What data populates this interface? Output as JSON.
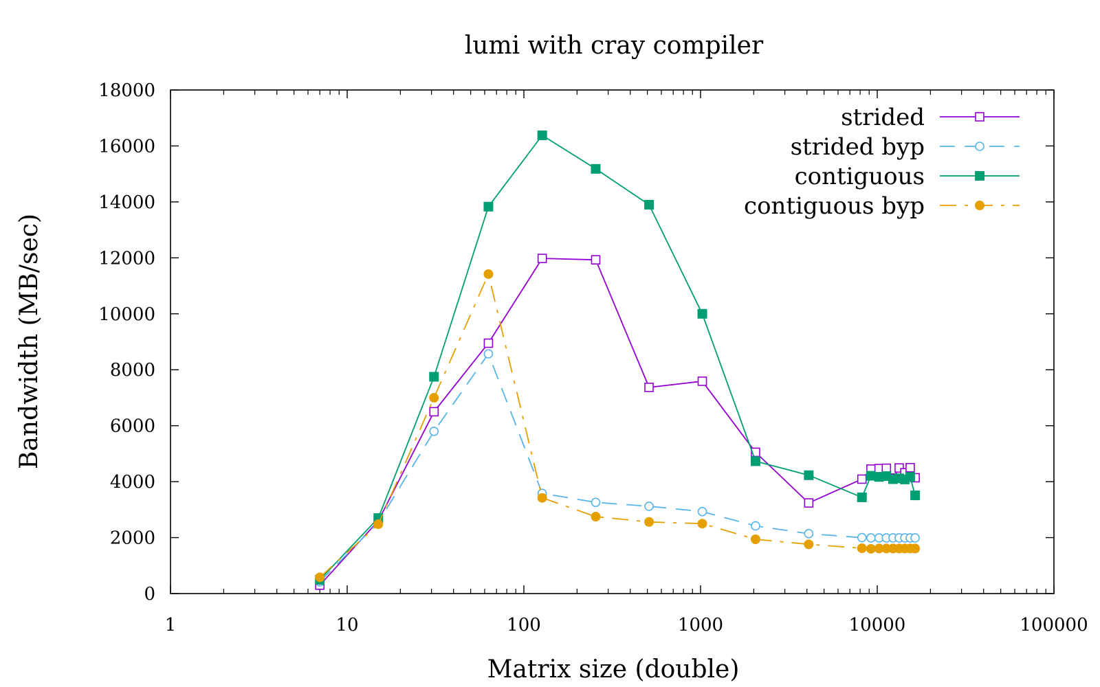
{
  "chart_data": {
    "type": "line",
    "title": "lumi with cray compiler",
    "xlabel": "Matrix size (double)",
    "ylabel": "Bandwidth (MB/sec)",
    "xscale": "log",
    "xlim": [
      1,
      100000
    ],
    "ylim": [
      0,
      18000
    ],
    "xticks": [
      1,
      10,
      100,
      1000,
      10000,
      100000
    ],
    "xtick_labels": [
      "1",
      "10",
      "100",
      "1000",
      "10000",
      "100000"
    ],
    "yticks": [
      0,
      2000,
      4000,
      6000,
      8000,
      10000,
      12000,
      14000,
      16000,
      18000
    ],
    "ytick_labels": [
      "0",
      "2000",
      "4000",
      "6000",
      "8000",
      "10000",
      "12000",
      "14000",
      "16000",
      "18000"
    ],
    "grid": false,
    "legend_position": "top-right",
    "series": [
      {
        "name": "strided",
        "color": "#9400d3",
        "line_style": "solid",
        "marker": "open-square",
        "x": [
          7,
          15,
          31,
          63,
          127,
          255,
          511,
          1023,
          2047,
          4095,
          8191,
          9215,
          10239,
          11263,
          12287,
          13311,
          14335,
          15359,
          16383
        ],
        "y": [
          300,
          2600,
          6500,
          8950,
          11980,
          11930,
          7370,
          7590,
          5050,
          3240,
          4090,
          4450,
          4470,
          4480,
          4130,
          4490,
          4320,
          4500,
          4140
        ]
      },
      {
        "name": "strided byp",
        "color": "#56b4e9",
        "line_style": "dashed",
        "marker": "open-circle",
        "x": [
          7,
          15,
          31,
          63,
          127,
          255,
          511,
          1023,
          2047,
          4095,
          8191,
          9215,
          10239,
          11263,
          12287,
          13311,
          14335,
          15359,
          16383
        ],
        "y": [
          420,
          2550,
          5800,
          8570,
          3580,
          3260,
          3120,
          2930,
          2420,
          2140,
          2000,
          1990,
          1990,
          1990,
          1990,
          1990,
          1990,
          1990,
          1990
        ]
      },
      {
        "name": "contiguous",
        "color": "#009e73",
        "line_style": "solid",
        "marker": "filled-square",
        "x": [
          7,
          15,
          31,
          63,
          127,
          255,
          511,
          1023,
          2047,
          4095,
          8191,
          9215,
          10239,
          11263,
          12287,
          13311,
          14335,
          15359,
          16383
        ],
        "y": [
          490,
          2700,
          7750,
          13830,
          16380,
          15180,
          13900,
          10000,
          4730,
          4230,
          3440,
          4210,
          4170,
          4200,
          4090,
          4120,
          4080,
          4170,
          3510
        ]
      },
      {
        "name": "contiguous byp",
        "color": "#e69f00",
        "line_style": "dash-dot",
        "marker": "filled-circle",
        "x": [
          7,
          15,
          31,
          63,
          127,
          255,
          511,
          1023,
          2047,
          4095,
          8191,
          9215,
          10239,
          11263,
          12287,
          13311,
          14335,
          15359,
          16383
        ],
        "y": [
          580,
          2480,
          7000,
          11420,
          3420,
          2750,
          2560,
          2500,
          1940,
          1760,
          1620,
          1600,
          1610,
          1610,
          1610,
          1610,
          1610,
          1610,
          1610
        ]
      }
    ]
  }
}
